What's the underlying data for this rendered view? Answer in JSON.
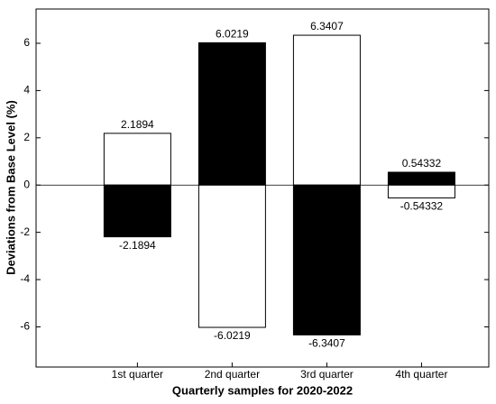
{
  "chart_data": {
    "type": "bar",
    "xlabel": "Quarterly samples for 2020-2022",
    "ylabel": "Deviations from Base Level (%)",
    "categories": [
      "1st quarter",
      "2nd quarter",
      "3rd quarter",
      "4th quarter"
    ],
    "series": [
      {
        "values": [
          2.1894,
          6.0219,
          6.3407,
          0.54332
        ],
        "colors": [
          "#ffffff",
          "#000000",
          "#ffffff",
          "#000000"
        ]
      },
      {
        "values": [
          -2.1894,
          -6.0219,
          -6.3407,
          -0.54332
        ],
        "colors": [
          "#000000",
          "#ffffff",
          "#000000",
          "#ffffff"
        ]
      }
    ],
    "ylim": [
      -7.7,
      7.45
    ],
    "yticks": [
      -6,
      -4,
      -2,
      0,
      2,
      4,
      6
    ],
    "grid": false
  }
}
